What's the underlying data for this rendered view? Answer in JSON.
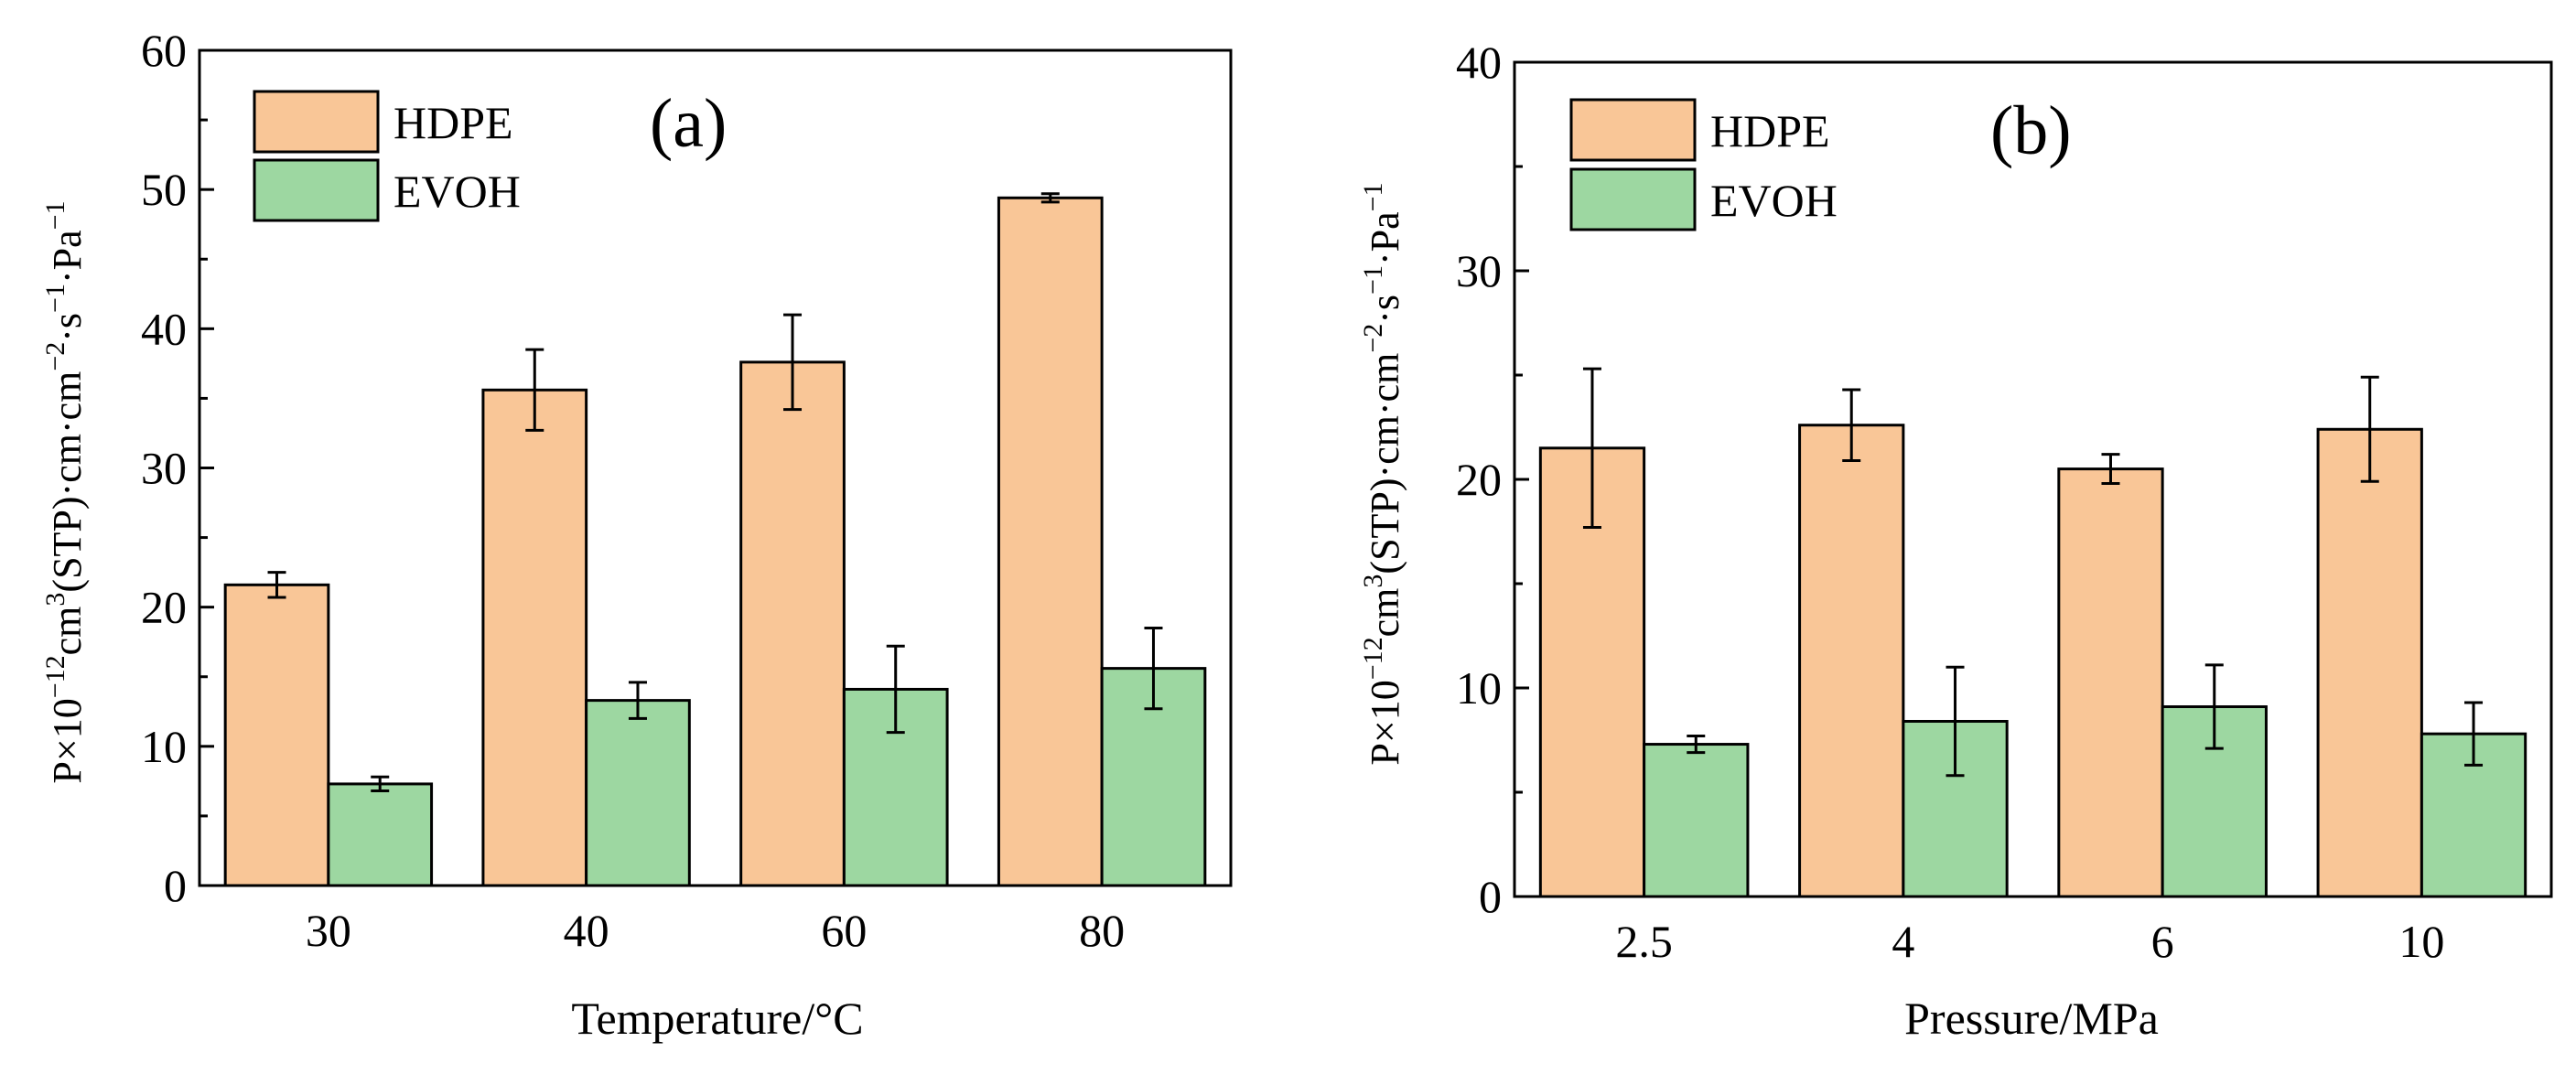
{
  "figure": {
    "ylabel_parts": [
      "P×10",
      "−12",
      "cm",
      "3",
      "(STP)·cm·cm",
      "−2",
      "·s",
      "−1",
      "·Pa",
      "−1"
    ]
  },
  "colors": {
    "HDPE": "#f9c697",
    "EVOH": "#9dd7a1"
  },
  "chart_data": [
    {
      "type": "bar",
      "panel_label": "(a)",
      "xlabel": "Temperature/°C",
      "ylabel": "P×10−12cm3(STP)·cm·cm−2·s−1·Pa−1",
      "categories": [
        "30",
        "40",
        "60",
        "80"
      ],
      "ylim": [
        0,
        60
      ],
      "yticks": [
        "0",
        "10",
        "20",
        "30",
        "40",
        "50",
        "60"
      ],
      "legend_position": "top-left",
      "series": [
        {
          "name": "HDPE",
          "values": [
            21.6,
            35.6,
            37.6,
            49.4
          ],
          "errors": [
            0.9,
            2.9,
            3.4,
            0.3
          ]
        },
        {
          "name": "EVOH",
          "values": [
            7.3,
            13.3,
            14.1,
            15.6
          ],
          "errors": [
            0.5,
            1.3,
            3.1,
            2.9
          ]
        }
      ]
    },
    {
      "type": "bar",
      "panel_label": "(b)",
      "xlabel": "Pressure/MPa",
      "ylabel": "P×10−12cm3(STP)·cm·cm−2·s−1·Pa−1",
      "categories": [
        "2.5",
        "4",
        "6",
        "10"
      ],
      "ylim": [
        0,
        40
      ],
      "yticks": [
        "0",
        "10",
        "20",
        "30",
        "40"
      ],
      "legend_position": "top-left",
      "series": [
        {
          "name": "HDPE",
          "values": [
            21.5,
            22.6,
            20.5,
            22.4
          ],
          "errors": [
            3.8,
            1.7,
            0.7,
            2.5
          ]
        },
        {
          "name": "EVOH",
          "values": [
            7.3,
            8.4,
            9.1,
            7.8
          ],
          "errors": [
            0.4,
            2.6,
            2.0,
            1.5
          ]
        }
      ]
    }
  ]
}
